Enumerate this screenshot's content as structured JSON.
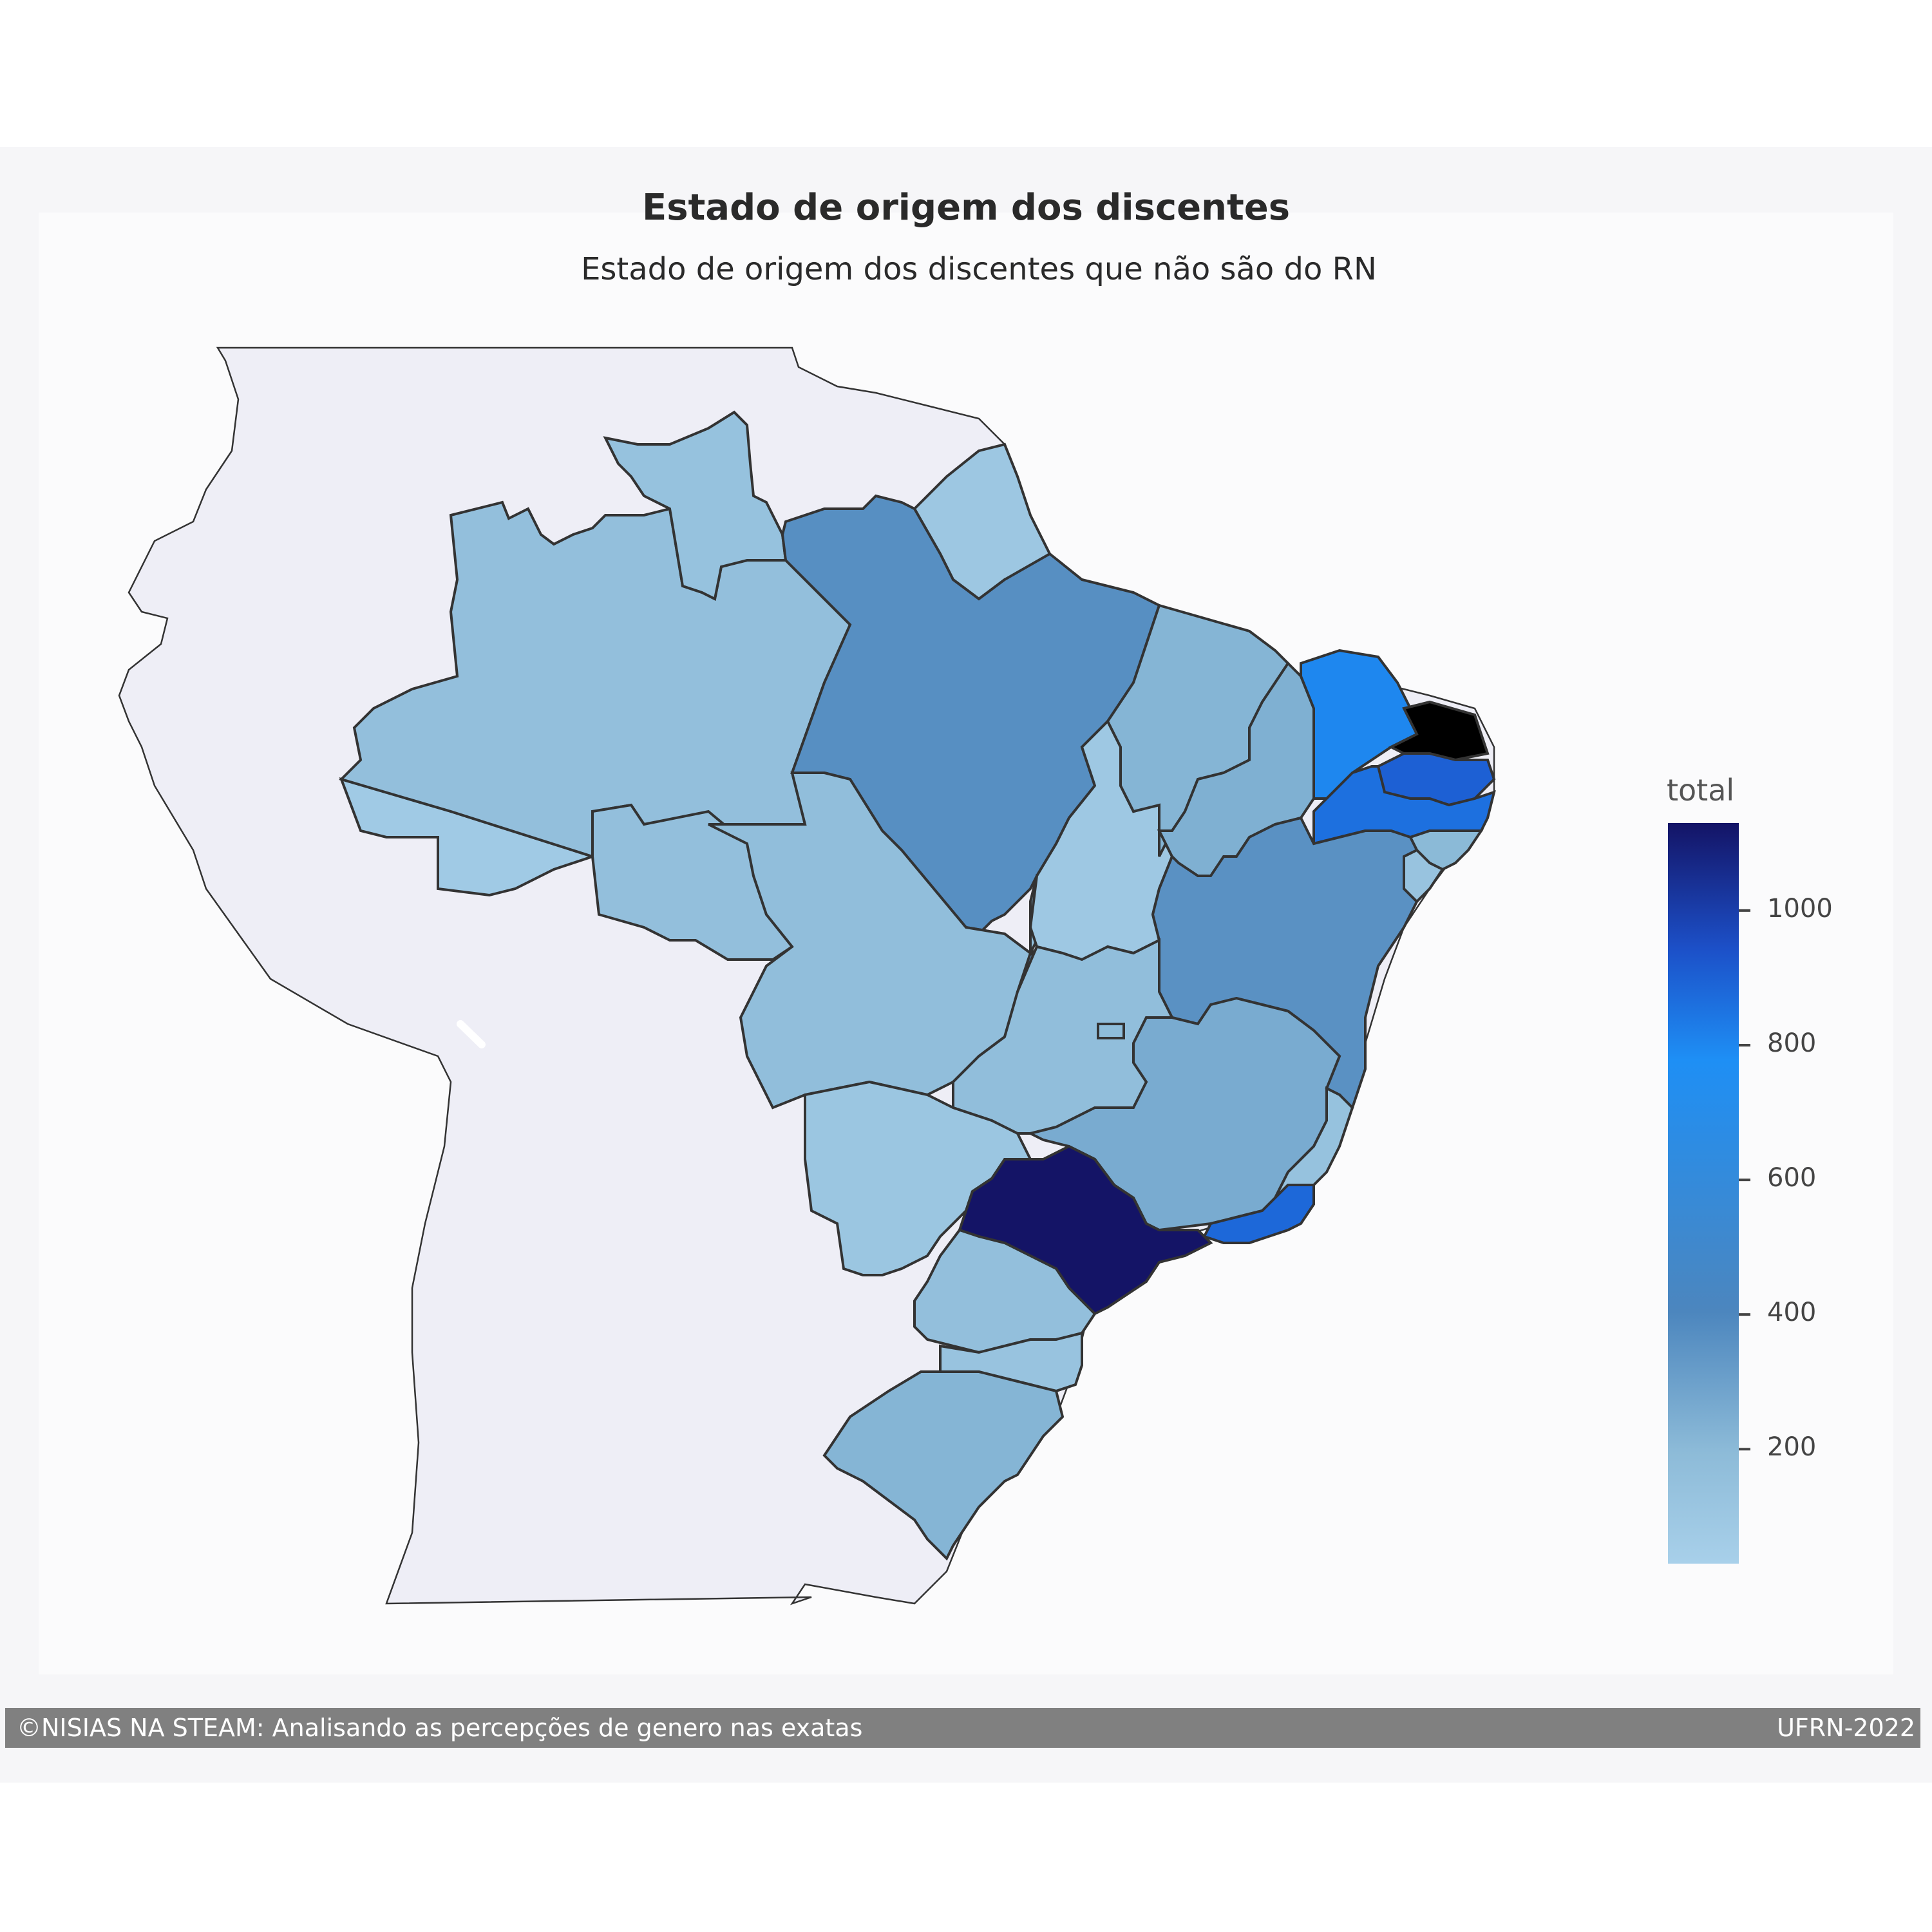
{
  "title": "Estado de origem dos discentes",
  "subtitle": "Estado de origem dos discentes que não são do RN",
  "colorbar": {
    "title": "total",
    "min": 30,
    "max": 1130,
    "ticks": [
      {
        "value": 200,
        "label": "200"
      },
      {
        "value": 400,
        "label": "400"
      },
      {
        "value": 600,
        "label": "600"
      },
      {
        "value": 800,
        "label": "800"
      },
      {
        "value": 1000,
        "label": "1000"
      }
    ],
    "colors": [
      "#a8d0ea",
      "#8dbbd8",
      "#4c86be",
      "#1e8ff5",
      "#1c50c8",
      "#141466"
    ]
  },
  "chart_data": {
    "type": "choropleth",
    "title": "Estado de origem dos discentes",
    "subtitle": "Estado de origem dos discentes que não são do RN",
    "color_scale_label": "total",
    "color_range": [
      30,
      1130
    ],
    "states": [
      {
        "uf": "AC",
        "value": 80
      },
      {
        "uf": "AM",
        "value": 160
      },
      {
        "uf": "RR",
        "value": 140
      },
      {
        "uf": "AP",
        "value": 100
      },
      {
        "uf": "PA",
        "value": 370
      },
      {
        "uf": "RO",
        "value": 160
      },
      {
        "uf": "MT",
        "value": 170
      },
      {
        "uf": "TO",
        "value": 90
      },
      {
        "uf": "MA",
        "value": 220
      },
      {
        "uf": "PI",
        "value": 240
      },
      {
        "uf": "CE",
        "value": 800
      },
      {
        "uf": "PB",
        "value": 900
      },
      {
        "uf": "PE",
        "value": 860
      },
      {
        "uf": "AL",
        "value": 200
      },
      {
        "uf": "SE",
        "value": 130
      },
      {
        "uf": "BA",
        "value": 360
      },
      {
        "uf": "GO",
        "value": 170
      },
      {
        "uf": "DF",
        "value": 180
      },
      {
        "uf": "MS",
        "value": 110
      },
      {
        "uf": "MG",
        "value": 260
      },
      {
        "uf": "ES",
        "value": 140
      },
      {
        "uf": "RJ",
        "value": 880
      },
      {
        "uf": "SP",
        "value": 1130
      },
      {
        "uf": "PR",
        "value": 160
      },
      {
        "uf": "SC",
        "value": 130
      },
      {
        "uf": "RS",
        "value": 220
      }
    ]
  },
  "footer": {
    "left": "©NISIAS NA STEAM: Analisando as percepções de genero nas exatas",
    "right": "UFRN-2022"
  }
}
